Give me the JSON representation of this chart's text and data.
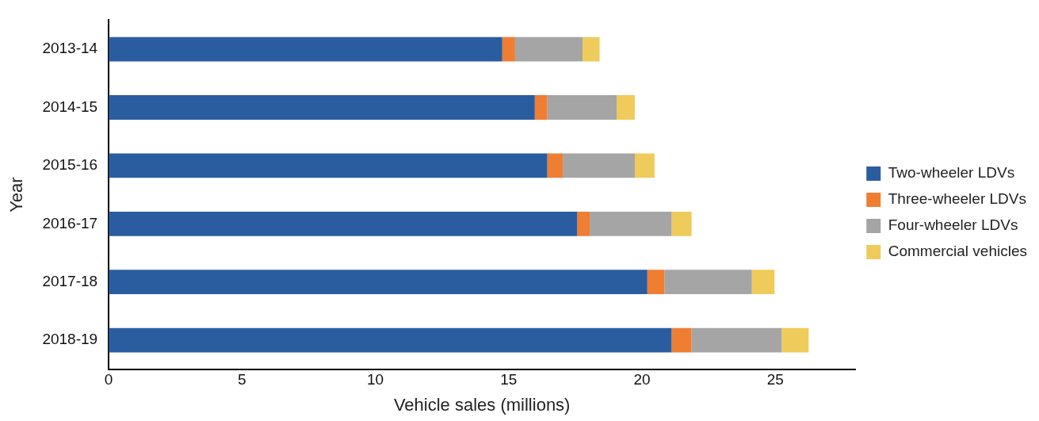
{
  "chart_data": {
    "type": "bar",
    "orientation": "horizontal",
    "stacked": true,
    "xlabel": "Vehicle sales (millions)",
    "ylabel": "Year",
    "categories": [
      "2013-14",
      "2014-15",
      "2015-16",
      "2016-17",
      "2017-18",
      "2018-19"
    ],
    "series": [
      {
        "name": "Two-wheeler LDVs",
        "color": "#2a5d9f",
        "values": [
          14.76,
          15.98,
          16.45,
          17.57,
          20.2,
          21.11
        ]
      },
      {
        "name": "Three-wheeler LDVs",
        "color": "#ef7d32",
        "values": [
          0.48,
          0.47,
          0.58,
          0.47,
          0.64,
          0.75
        ]
      },
      {
        "name": "Four-wheeler LDVs",
        "color": "#a5a5a5",
        "values": [
          2.53,
          2.6,
          2.7,
          3.07,
          3.28,
          3.38
        ]
      },
      {
        "name": "Commercial vehicles",
        "color": "#eecb5a",
        "values": [
          0.64,
          0.68,
          0.74,
          0.75,
          0.85,
          1.01
        ]
      }
    ],
    "xlim": [
      0,
      28
    ],
    "xticks": [
      0,
      5,
      10,
      15,
      20,
      25
    ],
    "grid": false,
    "legend": "right"
  }
}
